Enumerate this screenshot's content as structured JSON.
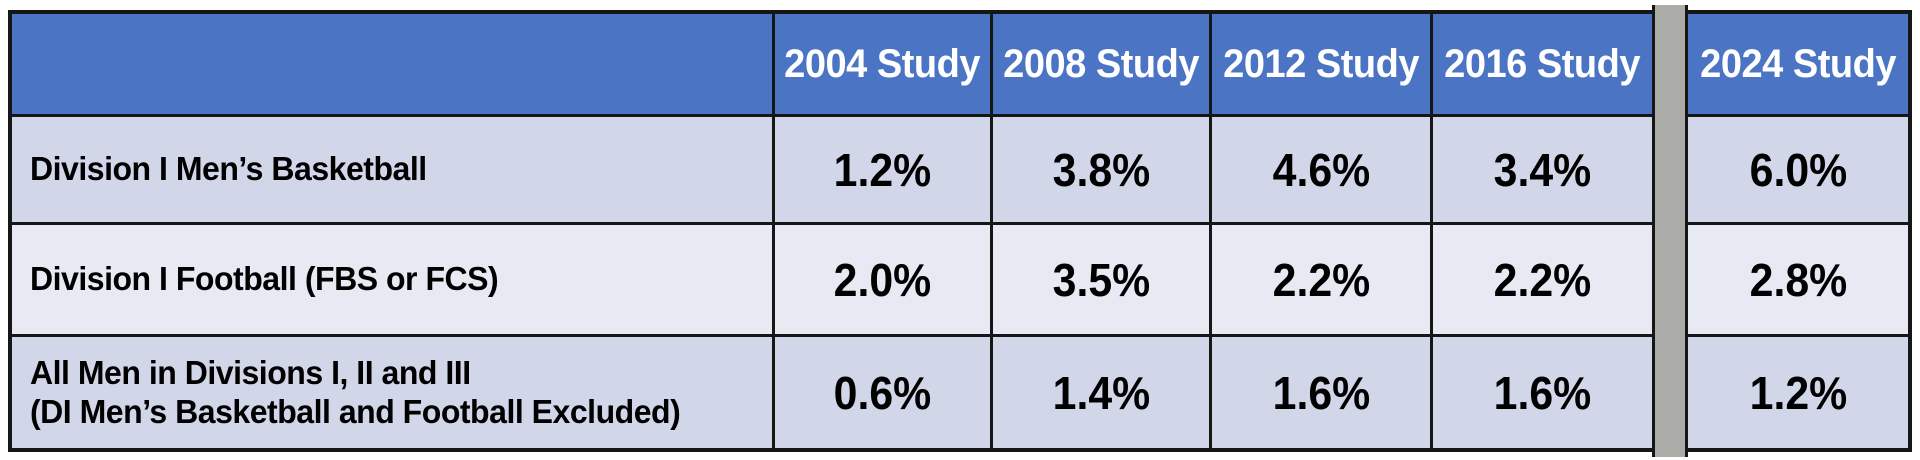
{
  "colors": {
    "header_bg": "#4C74C4",
    "header_text": "#FFFFFF",
    "banded_row_dark": "#D2D6E9",
    "banded_row_light": "#E7E9F3",
    "divider_gray": "#ABABA8",
    "grid_border": "#161616",
    "value_text": "#000000"
  },
  "table": {
    "corner_label": "",
    "headers": [
      "2004 Study",
      "2008 Study",
      "2012 Study",
      "2016 Study",
      "2024 Study"
    ],
    "rows": [
      {
        "label_line1": "Division I Men’s Basketball",
        "label_line2": "",
        "values": [
          "1.2%",
          "3.8%",
          "4.6%",
          "3.4%",
          "6.0%"
        ]
      },
      {
        "label_line1": "Division I Football (FBS or FCS)",
        "label_line2": "",
        "values": [
          "2.0%",
          "3.5%",
          "2.2%",
          "2.2%",
          "2.8%"
        ]
      },
      {
        "label_line1": "All Men in Divisions I, II and III",
        "label_line2": "(DI Men’s Basketball and Football Excluded)",
        "values": [
          "0.6%",
          "1.4%",
          "1.6%",
          "1.6%",
          "1.2%"
        ]
      }
    ]
  },
  "chart_data": {
    "type": "table",
    "title": "",
    "categories": [
      "2004 Study",
      "2008 Study",
      "2012 Study",
      "2016 Study",
      "2024 Study"
    ],
    "series": [
      {
        "name": "Division I Men’s Basketball",
        "values_percent": [
          1.2,
          3.8,
          4.6,
          3.4,
          6.0
        ]
      },
      {
        "name": "Division I Football (FBS or FCS)",
        "values_percent": [
          2.0,
          3.5,
          2.2,
          2.2,
          2.8
        ]
      },
      {
        "name": "All Men in Divisions I, II and III (DI Men’s Basketball and Football Excluded)",
        "values_percent": [
          0.6,
          1.4,
          1.6,
          1.6,
          1.2
        ]
      }
    ],
    "layout_hints": {
      "banded_rows": true,
      "gray_divider_between": [
        "2016 Study",
        "2024 Study"
      ],
      "header_style": "blue fill, white bold text",
      "values_format": "percent, one decimal"
    }
  }
}
